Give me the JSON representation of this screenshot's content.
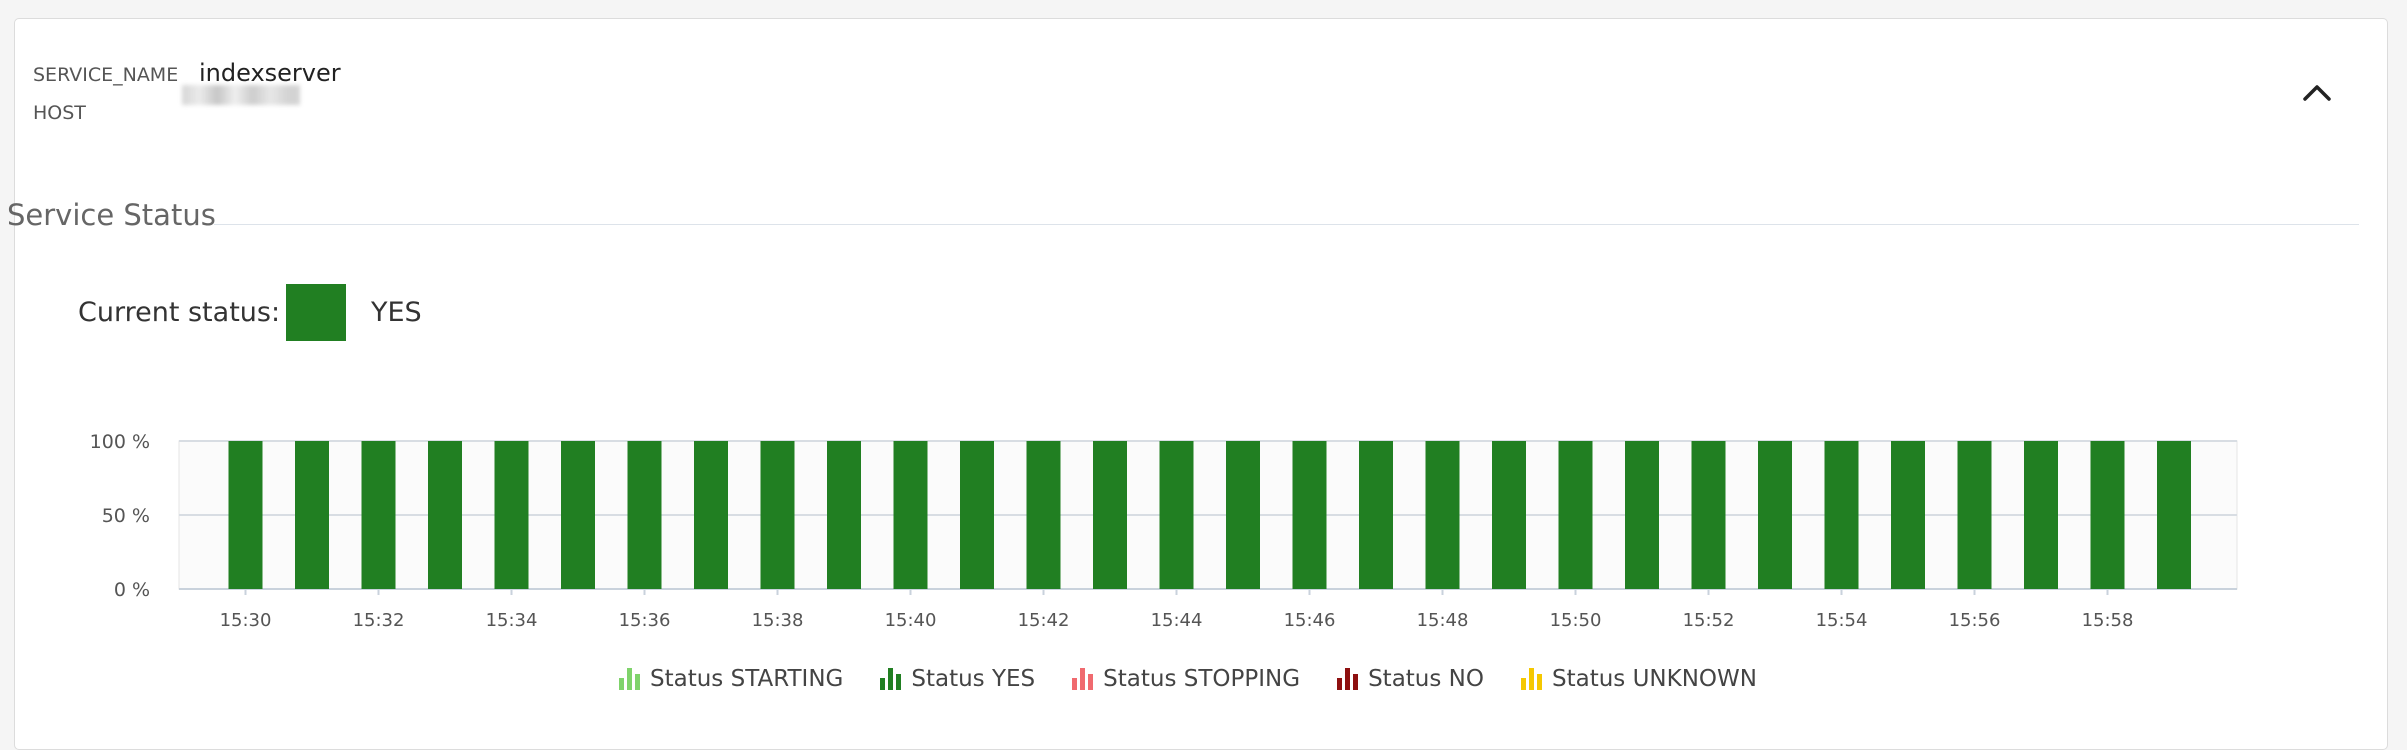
{
  "header": {
    "service_name_label": "SERVICE_NAME",
    "service_name_value": "indexserver",
    "host_label": "HOST"
  },
  "section": {
    "title": "Service Status"
  },
  "current_status": {
    "label": "Current status:",
    "value": "YES",
    "color": "#217f22"
  },
  "chart_data": {
    "type": "bar",
    "categories": [
      "15:30",
      "15:31",
      "15:32",
      "15:33",
      "15:34",
      "15:35",
      "15:36",
      "15:37",
      "15:38",
      "15:39",
      "15:40",
      "15:41",
      "15:42",
      "15:43",
      "15:44",
      "15:45",
      "15:46",
      "15:47",
      "15:48",
      "15:49",
      "15:50",
      "15:51",
      "15:52",
      "15:53",
      "15:54",
      "15:55",
      "15:56",
      "15:57",
      "15:58",
      "15:59"
    ],
    "tick_labels": [
      "15:30",
      "15:32",
      "15:34",
      "15:36",
      "15:38",
      "15:40",
      "15:42",
      "15:44",
      "15:46",
      "15:48",
      "15:50",
      "15:52",
      "15:54",
      "15:56",
      "15:58"
    ],
    "series": [
      {
        "name": "Status YES",
        "color": "#217f22",
        "values": [
          100,
          100,
          100,
          100,
          100,
          100,
          100,
          100,
          100,
          100,
          100,
          100,
          100,
          100,
          100,
          100,
          100,
          100,
          100,
          100,
          100,
          100,
          100,
          100,
          100,
          100,
          100,
          100,
          100,
          100
        ]
      }
    ],
    "y_ticks": [
      "0 %",
      "50 %",
      "100 %"
    ],
    "ylim": [
      0,
      100
    ],
    "grid": true,
    "legend": "bottom"
  },
  "legend": [
    {
      "label": "Status STARTING",
      "color": "#7fd36b"
    },
    {
      "label": "Status YES",
      "color": "#217f22"
    },
    {
      "label": "Status STOPPING",
      "color": "#f06a6f"
    },
    {
      "label": "Status NO",
      "color": "#8e1010"
    },
    {
      "label": "Status UNKNOWN",
      "color": "#f5c800"
    }
  ]
}
